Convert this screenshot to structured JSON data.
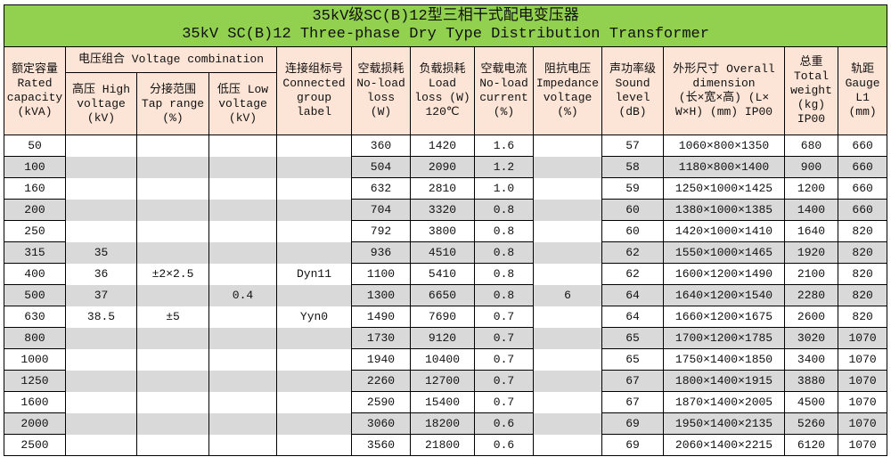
{
  "title": {
    "zh": "35kV级SC(B)12型三相干式配电变压器",
    "en": "35kV SC(B)12 Three-phase Dry Type Distribution Transformer"
  },
  "headers": {
    "capacity": [
      "额定容量",
      "Rated",
      "capacity",
      "(kVA)"
    ],
    "voltage_combination": "电压组合 Voltage combination",
    "high_voltage": [
      "高压 High",
      "voltage",
      "(kV)"
    ],
    "tap_range": [
      "分接范围",
      "Tap range",
      "(%)"
    ],
    "low_voltage": [
      "低压 Low",
      "voltage",
      "(kV)"
    ],
    "group_label": [
      "连接组标号",
      "Connected",
      "group",
      "label"
    ],
    "noload_loss": [
      "空载损耗",
      "No-load",
      "loss",
      "(W)"
    ],
    "load_loss": [
      "负载损耗",
      "Load",
      "loss (W)",
      "120℃"
    ],
    "noload_current": [
      "空载电流",
      "No-load",
      "current",
      "(%)"
    ],
    "impedance": [
      "阻抗电压",
      "Impedance",
      "voltage",
      "(%)"
    ],
    "sound": [
      "声功率级",
      "Sound",
      "level",
      "(dB)"
    ],
    "dimension": [
      "外形尺寸 Overall",
      "dimension",
      "(长×宽×高) (L×",
      "W×H) (mm) IP00"
    ],
    "weight": [
      "总重",
      "Total",
      "weight",
      "(kg)",
      "IP00"
    ],
    "gauge": [
      "轨距",
      "Gauge",
      "L1",
      "(mm)"
    ]
  },
  "rows": [
    [
      "50",
      "",
      "",
      "",
      "",
      "360",
      "1420",
      "1.6",
      "",
      "57",
      "1060×800×1350",
      "680",
      "660"
    ],
    [
      "100",
      "",
      "",
      "",
      "",
      "504",
      "2090",
      "1.2",
      "",
      "58",
      "1180×800×1400",
      "900",
      "660"
    ],
    [
      "160",
      "",
      "",
      "",
      "",
      "632",
      "2810",
      "1.0",
      "",
      "59",
      "1250×1000×1425",
      "1200",
      "660"
    ],
    [
      "200",
      "",
      "",
      "",
      "",
      "704",
      "3320",
      "0.8",
      "",
      "60",
      "1380×1000×1385",
      "1400",
      "660"
    ],
    [
      "250",
      "",
      "",
      "",
      "",
      "792",
      "3800",
      "0.8",
      "",
      "60",
      "1420×1000×1410",
      "1640",
      "820"
    ],
    [
      "315",
      "35",
      "",
      "",
      "",
      "936",
      "4510",
      "0.8",
      "",
      "62",
      "1550×1000×1465",
      "1920",
      "820"
    ],
    [
      "400",
      "36",
      "±2×2.5",
      "",
      "Dyn11",
      "1100",
      "5410",
      "0.8",
      "",
      "62",
      "1600×1200×1490",
      "2100",
      "820"
    ],
    [
      "500",
      "37",
      "",
      "0.4",
      "",
      "1300",
      "6650",
      "0.8",
      "6",
      "64",
      "1640×1200×1540",
      "2280",
      "820"
    ],
    [
      "630",
      "38.5",
      "±5",
      "",
      "Yyn0",
      "1490",
      "7690",
      "0.7",
      "",
      "64",
      "1660×1200×1675",
      "2600",
      "820"
    ],
    [
      "800",
      "",
      "",
      "",
      "",
      "1730",
      "9120",
      "0.7",
      "",
      "65",
      "1700×1200×1785",
      "3020",
      "1070"
    ],
    [
      "1000",
      "",
      "",
      "",
      "",
      "1940",
      "10400",
      "0.7",
      "",
      "65",
      "1750×1400×1850",
      "3400",
      "1070"
    ],
    [
      "1250",
      "",
      "",
      "",
      "",
      "2260",
      "12700",
      "0.7",
      "",
      "67",
      "1800×1400×1915",
      "3880",
      "1070"
    ],
    [
      "1600",
      "",
      "",
      "",
      "",
      "2590",
      "15400",
      "0.7",
      "",
      "67",
      "1870×1400×2005",
      "4500",
      "1070"
    ],
    [
      "2000",
      "",
      "",
      "",
      "",
      "3060",
      "18200",
      "0.6",
      "",
      "69",
      "1950×1400×2135",
      "5260",
      "1070"
    ],
    [
      "2500",
      "",
      "",
      "",
      "",
      "3560",
      "21800",
      "0.6",
      "",
      "69",
      "2060×1400×2215",
      "6120",
      "1070"
    ]
  ],
  "colors": {
    "title_bg": "#92d050",
    "header_bg": "#fce4d6",
    "stripe": "#d9d9d9"
  }
}
